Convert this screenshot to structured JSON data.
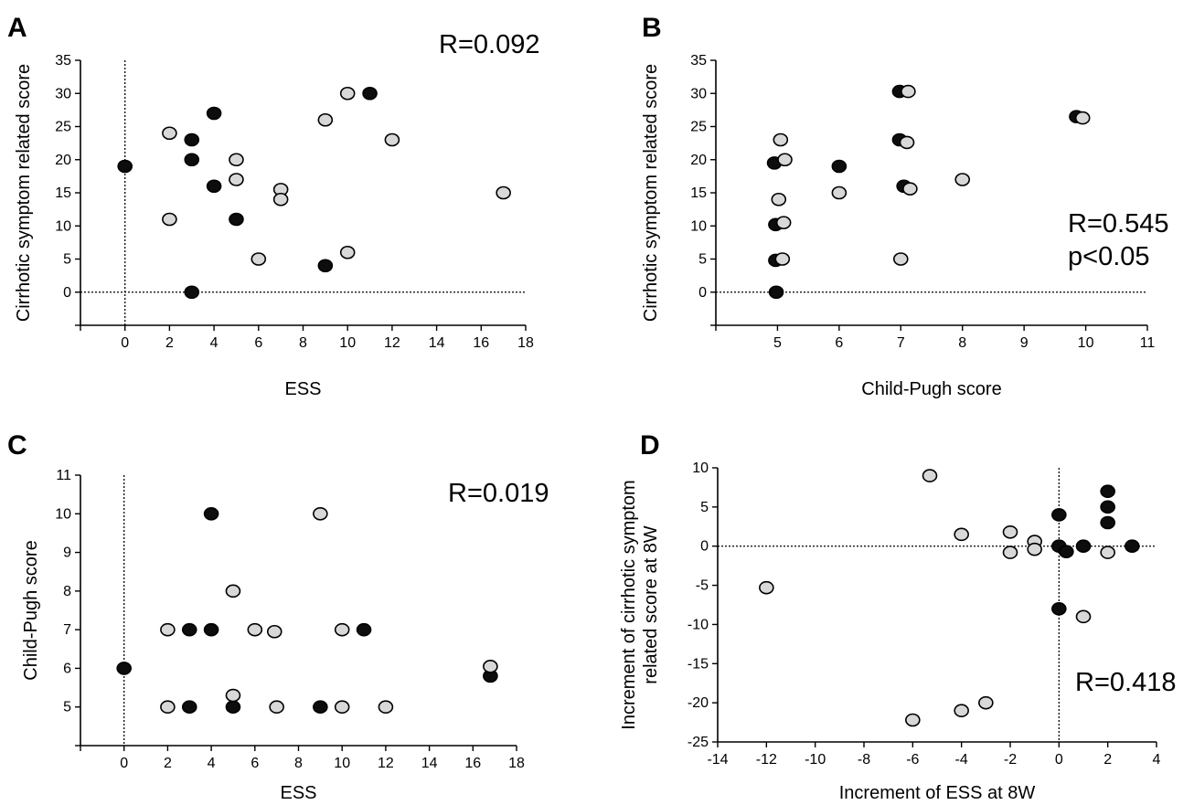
{
  "colors": {
    "filled": "#0d0d0d",
    "open": "#d8d8d8",
    "open_stroke": "#000000",
    "blue_ring": "#2d4f8f"
  },
  "chart_data": [
    {
      "panel": "A",
      "type": "scatter",
      "xlabel": "ESS",
      "ylabel": "Cirrhotic symptom related score",
      "annotation": [
        "R=0.092"
      ],
      "xlim": [
        -2,
        18
      ],
      "ylim": [
        -5,
        35
      ],
      "xticks": [
        0,
        2,
        4,
        6,
        8,
        10,
        12,
        14,
        16,
        18
      ],
      "yticks": [
        0,
        5,
        10,
        15,
        20,
        25,
        30,
        35
      ],
      "reference_lines": {
        "x": 0,
        "y": 0
      },
      "grid": false,
      "series": [
        {
          "marker": "filled",
          "outline": "blue",
          "points": [
            [
              0,
              19
            ],
            [
              3,
              23
            ],
            [
              3,
              20
            ],
            [
              4,
              27
            ],
            [
              4,
              16
            ],
            [
              5,
              11
            ],
            [
              9,
              4
            ],
            [
              11,
              30
            ],
            [
              3,
              0
            ]
          ]
        },
        {
          "marker": "open",
          "points": [
            [
              2,
              24
            ],
            [
              2,
              11
            ],
            [
              5,
              20
            ],
            [
              5,
              17
            ],
            [
              6,
              5
            ],
            [
              7,
              15.5
            ],
            [
              7,
              14
            ],
            [
              9,
              26
            ],
            [
              10,
              30
            ],
            [
              10,
              6
            ],
            [
              12,
              23
            ],
            [
              17,
              15
            ]
          ]
        }
      ]
    },
    {
      "panel": "B",
      "type": "scatter",
      "xlabel": "Child-Pugh score",
      "ylabel": "Cirrhotic symptom related score",
      "annotation": [
        "R=0.545",
        "p<0.05"
      ],
      "xlim": [
        4,
        11
      ],
      "ylim": [
        -5,
        35
      ],
      "xticks": [
        5,
        6,
        7,
        8,
        9,
        10,
        11
      ],
      "yticks": [
        0,
        5,
        10,
        15,
        20,
        25,
        30,
        35
      ],
      "reference_lines": {
        "y": 0
      },
      "grid": false,
      "series": [
        {
          "marker": "filled",
          "points": [
            [
              4.95,
              19.5
            ],
            [
              4.97,
              10.2
            ],
            [
              4.97,
              4.8
            ],
            [
              4.98,
              0
            ],
            [
              6,
              19
            ],
            [
              6.98,
              30.3
            ],
            [
              6.98,
              23
            ],
            [
              7.05,
              16
            ],
            [
              9.85,
              26.5
            ]
          ]
        },
        {
          "marker": "open",
          "points": [
            [
              5.05,
              23
            ],
            [
              5.12,
              20
            ],
            [
              5.02,
              14
            ],
            [
              5.1,
              10.5
            ],
            [
              5.08,
              5
            ],
            [
              6,
              15
            ],
            [
              7.12,
              30.3
            ],
            [
              7.1,
              22.6
            ],
            [
              7.15,
              15.6
            ],
            [
              7,
              5
            ],
            [
              8,
              17
            ],
            [
              9.95,
              26.3
            ]
          ]
        }
      ]
    },
    {
      "panel": "C",
      "type": "scatter",
      "xlabel": "ESS",
      "ylabel": "Child-Pugh score",
      "annotation": [
        "R=0.019"
      ],
      "xlim": [
        -2,
        18
      ],
      "ylim": [
        4,
        11
      ],
      "xticks": [
        0,
        2,
        4,
        6,
        8,
        10,
        12,
        14,
        16,
        18
      ],
      "yticks": [
        5,
        6,
        7,
        8,
        9,
        10,
        11
      ],
      "reference_lines": {
        "x": 0
      },
      "grid": false,
      "series": [
        {
          "marker": "filled",
          "points": [
            [
              0,
              6
            ],
            [
              3,
              7
            ],
            [
              4,
              7
            ],
            [
              4,
              10
            ],
            [
              3,
              5
            ],
            [
              5,
              5
            ],
            [
              9,
              5
            ],
            [
              11,
              7
            ],
            [
              16.8,
              5.8
            ]
          ]
        },
        {
          "marker": "open",
          "points": [
            [
              2,
              7
            ],
            [
              2,
              5
            ],
            [
              5,
              8
            ],
            [
              5,
              5.3
            ],
            [
              6,
              7
            ],
            [
              6.9,
              6.95
            ],
            [
              7,
              5
            ],
            [
              9,
              10
            ],
            [
              10,
              7
            ],
            [
              10,
              5
            ],
            [
              12,
              5
            ],
            [
              16.8,
              6.05
            ]
          ]
        }
      ]
    },
    {
      "panel": "D",
      "type": "scatter",
      "xlabel": "Increment of ESS at 8W",
      "ylabel": [
        "Increment of cirrhotic symptom",
        "related score at 8W"
      ],
      "annotation": [
        "R=0.418"
      ],
      "xlim": [
        -14,
        4
      ],
      "ylim": [
        -25,
        10
      ],
      "xticks": [
        -14,
        -12,
        -10,
        -8,
        -6,
        -4,
        -2,
        0,
        2,
        4
      ],
      "yticks": [
        -25,
        -20,
        -15,
        -10,
        -5,
        0,
        5,
        10
      ],
      "reference_lines": {
        "x": 0,
        "y": 0
      },
      "grid": false,
      "series": [
        {
          "marker": "filled",
          "points": [
            [
              0,
              4
            ],
            [
              0,
              0
            ],
            [
              0.3,
              -0.7
            ],
            [
              1,
              0
            ],
            [
              2,
              7
            ],
            [
              2,
              5
            ],
            [
              2,
              3
            ],
            [
              3,
              0
            ],
            [
              0,
              -8
            ]
          ]
        },
        {
          "marker": "open",
          "points": [
            [
              -12,
              -5.3
            ],
            [
              -5.3,
              9
            ],
            [
              -4,
              1.5
            ],
            [
              -2,
              1.8
            ],
            [
              -2,
              -0.8
            ],
            [
              -1,
              0.6
            ],
            [
              -1,
              -0.4
            ],
            [
              2,
              -0.8
            ],
            [
              1,
              -9
            ],
            [
              -6,
              -22.2
            ],
            [
              -4,
              -21
            ],
            [
              -3,
              -20
            ]
          ]
        }
      ]
    }
  ]
}
